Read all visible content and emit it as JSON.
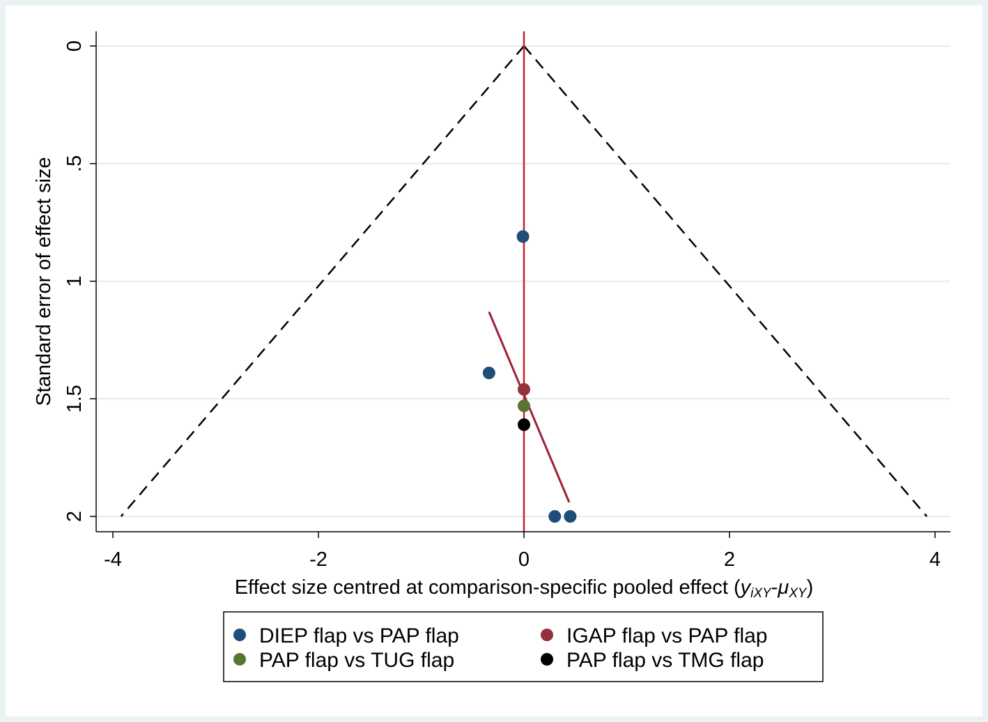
{
  "chart_data": {
    "type": "scatter",
    "xlabel": {
      "prefix": "Effect size centred at comparison-specific pooled effect (",
      "y_base": "y",
      "y_sub": "iXY",
      "dash": "-",
      "mu_base": "μ",
      "mu_sub": "XY",
      "suffix": ")"
    },
    "ylabel": "Standard error of effect size",
    "xlim": [
      -4,
      4
    ],
    "ylim": [
      2,
      0
    ],
    "y_reversed": true,
    "x_ticks": [
      {
        "value": -4,
        "label": "-4"
      },
      {
        "value": -2,
        "label": "-2"
      },
      {
        "value": 0,
        "label": "0"
      },
      {
        "value": 2,
        "label": "2"
      },
      {
        "value": 4,
        "label": "4"
      }
    ],
    "y_ticks": [
      {
        "value": 0,
        "label": "0"
      },
      {
        "value": 0.5,
        "label": ".5"
      },
      {
        "value": 1,
        "label": "1"
      },
      {
        "value": 1.5,
        "label": "1.5"
      },
      {
        "value": 2,
        "label": "2"
      }
    ],
    "grid": true,
    "reference_line": {
      "x": 0,
      "color": "#cc2020"
    },
    "funnel": {
      "apex": [
        0,
        0
      ],
      "base_left": [
        -3.92,
        2.0
      ],
      "base_right": [
        3.92,
        2.0
      ],
      "style": "dashed",
      "color": "#000000"
    },
    "regression_line": {
      "points": [
        [
          -0.34,
          1.13
        ],
        [
          0.44,
          1.94
        ]
      ],
      "color": "#a01e38"
    },
    "series": [
      {
        "name": "DIEP flap vs PAP flap",
        "color": "#1f4e79",
        "points": [
          [
            -0.01,
            0.81
          ],
          [
            -0.34,
            1.39
          ],
          [
            0.3,
            2.0
          ],
          [
            0.45,
            2.0
          ]
        ]
      },
      {
        "name": "IGAP flap vs PAP flap",
        "color": "#93323d",
        "points": [
          [
            0.0,
            1.46
          ]
        ]
      },
      {
        "name": "PAP flap vs TUG flap",
        "color": "#5a7530",
        "points": [
          [
            0.0,
            1.53
          ]
        ]
      },
      {
        "name": "PAP flap vs TMG flap",
        "color": "#000000",
        "points": [
          [
            0.0,
            1.61
          ]
        ]
      }
    ],
    "legend_position": "bottom"
  },
  "colors": {
    "outer_background": "#eaf2f3",
    "plot_background": "#ffffff",
    "gridline": "#e3ecee"
  }
}
